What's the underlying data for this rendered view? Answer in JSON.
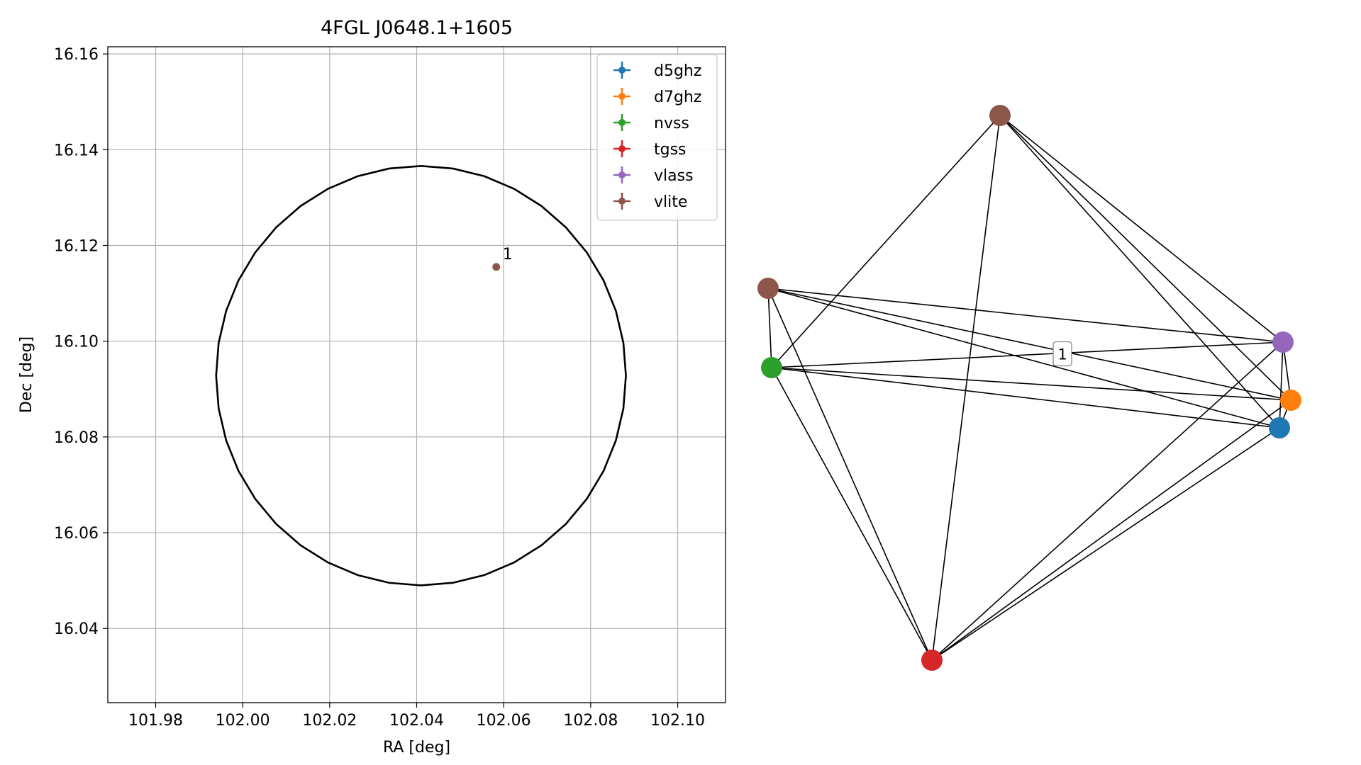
{
  "chart_data": [
    {
      "type": "scatter",
      "title": "4FGL J0648.1+1605",
      "xlabel": "RA [deg]",
      "ylabel": "Dec [deg]",
      "xlim": [
        101.969,
        102.111
      ],
      "ylim": [
        16.0245,
        16.1615
      ],
      "grid": true,
      "legend_position": "top-right",
      "xticks": [
        101.98,
        102.0,
        102.02,
        102.04,
        102.06,
        102.08,
        102.1
      ],
      "xtick_labels": [
        "101.98",
        "102.00",
        "102.02",
        "102.04",
        "102.06",
        "102.08",
        "102.10"
      ],
      "yticks": [
        16.04,
        16.06,
        16.08,
        16.1,
        16.12,
        16.14,
        16.16
      ],
      "ytick_labels": [
        "16.04",
        "16.06",
        "16.08",
        "16.10",
        "16.12",
        "16.14",
        "16.16"
      ],
      "ellipse": {
        "center": [
          102.041,
          16.0928
        ],
        "ra_radius": 0.0471,
        "dec_radius": 0.0438,
        "color": "#000000"
      },
      "series": [
        {
          "name": "d5ghz",
          "color": "#1f77b4",
          "points": []
        },
        {
          "name": "d7ghz",
          "color": "#ff7f0e",
          "points": []
        },
        {
          "name": "nvss",
          "color": "#2ca02c",
          "points": []
        },
        {
          "name": "tgss",
          "color": "#d62728",
          "points": []
        },
        {
          "name": "vlass",
          "color": "#9467bd",
          "points": []
        },
        {
          "name": "vlite",
          "color": "#8c564b",
          "points": [
            {
              "x": 102.0583,
              "y": 16.1155,
              "label": "1"
            }
          ]
        }
      ]
    },
    {
      "type": "network",
      "edge_label": "1",
      "nodes": [
        {
          "id": "vlite_a",
          "color": "#8c564b",
          "pos": [
            1410,
            163
          ]
        },
        {
          "id": "vlite_b",
          "color": "#8c564b",
          "pos": [
            1083,
            407
          ]
        },
        {
          "id": "nvss",
          "color": "#2ca02c",
          "pos": [
            1088,
            519
          ]
        },
        {
          "id": "vlass",
          "color": "#9467bd",
          "pos": [
            1809,
            483
          ]
        },
        {
          "id": "d7ghz",
          "color": "#ff7f0e",
          "pos": [
            1820,
            565
          ]
        },
        {
          "id": "d5ghz",
          "color": "#1f77b4",
          "pos": [
            1804,
            604
          ]
        },
        {
          "id": "tgss",
          "color": "#d62728",
          "pos": [
            1314,
            932
          ]
        }
      ],
      "edges": [
        [
          "vlite_a",
          "nvss"
        ],
        [
          "vlite_a",
          "tgss"
        ],
        [
          "vlite_a",
          "vlass"
        ],
        [
          "vlite_a",
          "d7ghz"
        ],
        [
          "vlite_a",
          "d5ghz"
        ],
        [
          "vlite_b",
          "nvss"
        ],
        [
          "vlite_b",
          "tgss"
        ],
        [
          "vlite_b",
          "vlass"
        ],
        [
          "vlite_b",
          "d7ghz"
        ],
        [
          "vlite_b",
          "d5ghz"
        ],
        [
          "nvss",
          "tgss"
        ],
        [
          "nvss",
          "vlass"
        ],
        [
          "nvss",
          "d7ghz"
        ],
        [
          "nvss",
          "d5ghz"
        ],
        [
          "tgss",
          "vlass"
        ],
        [
          "tgss",
          "d7ghz"
        ],
        [
          "tgss",
          "d5ghz"
        ],
        [
          "vlass",
          "d7ghz"
        ],
        [
          "vlass",
          "d5ghz"
        ],
        [
          "d7ghz",
          "d5ghz"
        ]
      ]
    }
  ]
}
